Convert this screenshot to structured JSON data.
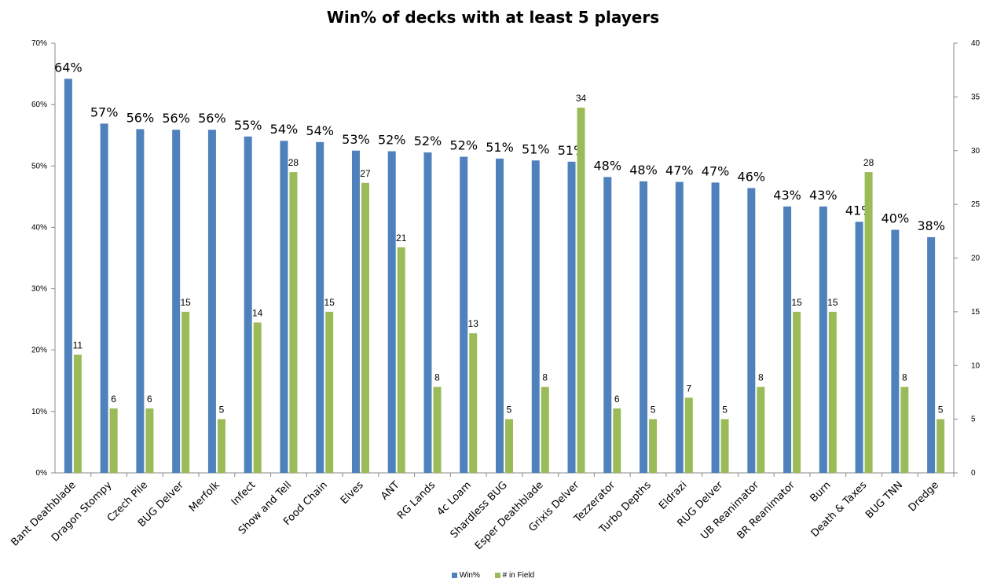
{
  "chart_data": {
    "type": "bar",
    "title": "Win% of decks with at least 5 players",
    "categories": [
      "Bant Deathblade",
      "Dragon Stompy",
      "Czech Pile",
      "BUG Delver",
      "Merfolk",
      "Infect",
      "Show and Tell",
      "Food Chain",
      "Elves",
      "ANT",
      "RG Lands",
      "4c Loam",
      "Shardless BUG",
      "Esper Deathblade",
      "Grixis Delver",
      "Tezzerator",
      "Turbo Depths",
      "Eldrazi",
      "RUG Delver",
      "UB Reanimator",
      "BR Reanimator",
      "Burn",
      "Death & Taxes",
      "BUG TNN",
      "Dredge"
    ],
    "series": [
      {
        "name": "Win%",
        "axis": "left",
        "color": "#4F81BD",
        "values": [
          64.2,
          56.9,
          56.0,
          55.9,
          55.9,
          54.8,
          54.1,
          53.9,
          52.5,
          52.4,
          52.2,
          51.5,
          51.2,
          50.9,
          50.7,
          48.2,
          47.5,
          47.4,
          47.3,
          46.4,
          43.4,
          43.4,
          40.9,
          39.6,
          38.4
        ],
        "labels": [
          "64%",
          "57%",
          "56%",
          "56%",
          "56%",
          "55%",
          "54%",
          "54%",
          "53%",
          "52%",
          "52%",
          "52%",
          "51%",
          "51%",
          "51%",
          "48%",
          "48%",
          "47%",
          "47%",
          "46%",
          "43%",
          "43%",
          "41%",
          "40%",
          "38%"
        ]
      },
      {
        "name": "# in Field",
        "axis": "right",
        "color": "#9BBB59",
        "values": [
          11,
          6,
          6,
          15,
          5,
          14,
          28,
          15,
          27,
          21,
          8,
          13,
          5,
          8,
          34,
          6,
          5,
          7,
          5,
          8,
          15,
          15,
          28,
          8,
          5
        ],
        "labels": [
          "11",
          "6",
          "6",
          "15",
          "5",
          "14",
          "28",
          "15",
          "27",
          "21",
          "8",
          "13",
          "5",
          "8",
          "34",
          "6",
          "5",
          "7",
          "5",
          "8",
          "15",
          "15",
          "28",
          "8",
          "5"
        ]
      }
    ],
    "y_left": {
      "range": [
        0,
        70
      ],
      "ticks": [
        "0%",
        "10%",
        "20%",
        "30%",
        "40%",
        "50%",
        "60%",
        "70%"
      ]
    },
    "y_right": {
      "range": [
        0,
        40
      ],
      "ticks": [
        "0",
        "5",
        "10",
        "15",
        "20",
        "25",
        "30",
        "35",
        "40"
      ]
    },
    "grid": false,
    "legend_position": "bottom"
  }
}
